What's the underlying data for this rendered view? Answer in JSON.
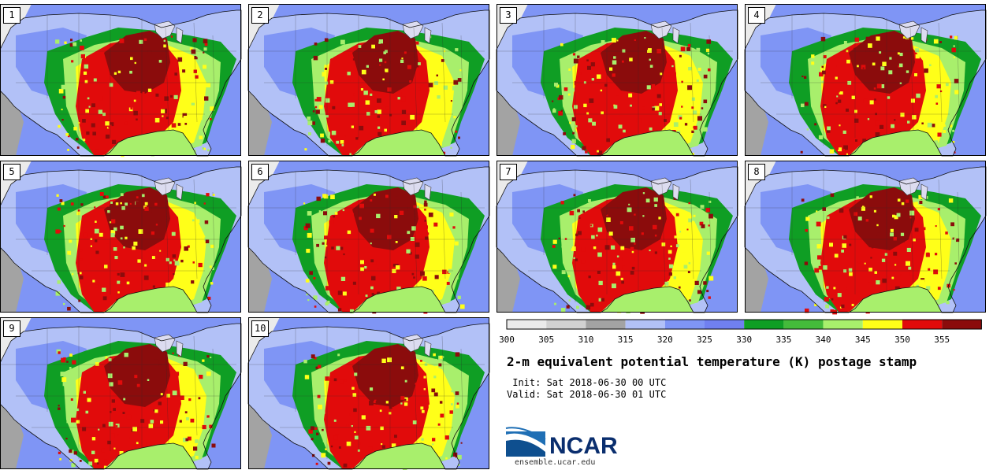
{
  "stamps": [
    {
      "id": "1"
    },
    {
      "id": "2"
    },
    {
      "id": "3"
    },
    {
      "id": "4"
    },
    {
      "id": "5"
    },
    {
      "id": "6"
    },
    {
      "id": "7"
    },
    {
      "id": "8"
    },
    {
      "id": "9"
    },
    {
      "id": "10"
    }
  ],
  "colorbar": {
    "bounds": [
      300,
      305,
      310,
      315,
      320,
      325,
      330,
      335,
      340,
      345,
      350,
      355,
      360
    ],
    "labels": [
      "300",
      "305",
      "310",
      "315",
      "320",
      "325",
      "330",
      "335",
      "340",
      "345",
      "350",
      "355"
    ],
    "colors": [
      "#ebebeb",
      "#d2d2d2",
      "#a3a3a3",
      "#b2c1f7",
      "#7f95f5",
      "#7080f0",
      "#0f9e24",
      "#44bb3b",
      "#a8ef6c",
      "#ffff19",
      "#e10b0b",
      "#8b0c0c"
    ]
  },
  "title": "2-m equivalent potential temperature (K) postage stamp",
  "init_text": " Init: Sat 2018-06-30 00 UTC",
  "valid_text": "Valid: Sat 2018-06-30 01 UTC",
  "logo": {
    "text": "NCAR",
    "site": "ensemble.ucar.edu"
  }
}
